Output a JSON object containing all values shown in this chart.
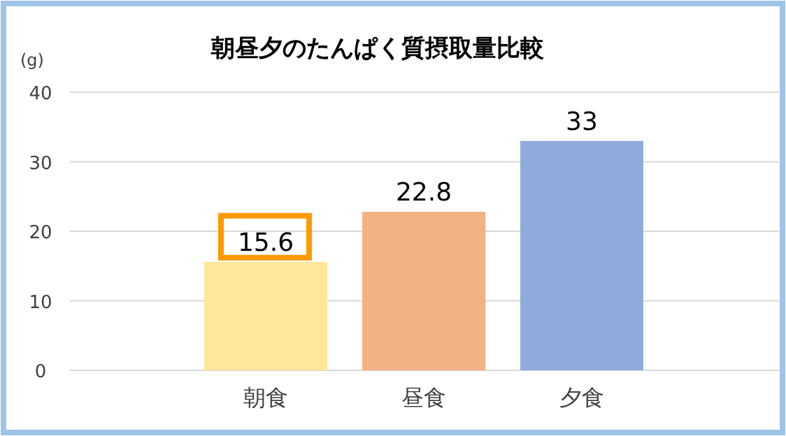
{
  "chart_data": {
    "type": "bar",
    "title": "朝昼夕のたんぱく質摂取量比較",
    "ylabel": "(g)",
    "categories": [
      "朝食",
      "昼食",
      "夕食"
    ],
    "values": [
      15.6,
      22.8,
      33
    ],
    "colors": [
      "#ffe699",
      "#f4b183",
      "#8faadc"
    ],
    "ylim": [
      0,
      40
    ],
    "yticks": [
      0,
      10,
      20,
      30,
      40
    ],
    "grid": "y",
    "data_labels": true
  }
}
